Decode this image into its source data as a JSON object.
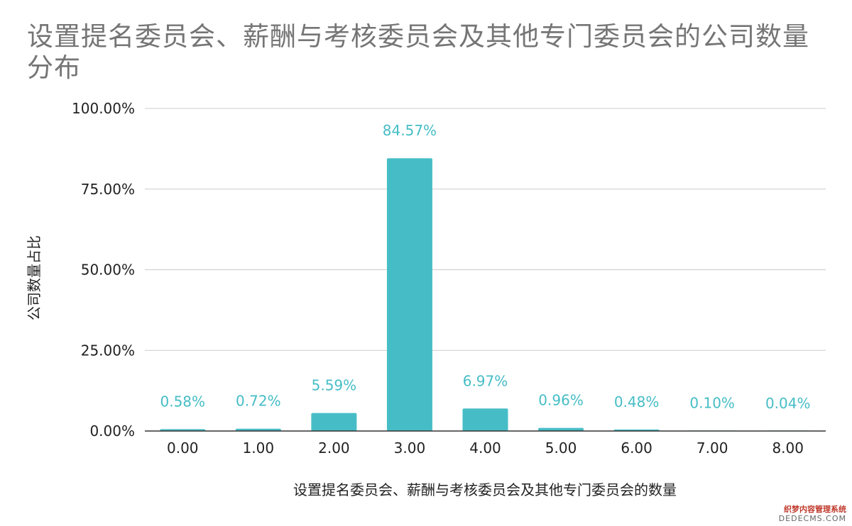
{
  "chart_data": {
    "type": "bar",
    "title": "设置提名委员会、薪酬与考核委员会及其他专门委员会的公司数量分布",
    "xlabel": "设置提名委员会、薪酬与考核委员会及其他专门委员会的数量",
    "ylabel": "公司数量占比",
    "categories": [
      "0.00",
      "1.00",
      "2.00",
      "3.00",
      "4.00",
      "5.00",
      "6.00",
      "7.00",
      "8.00"
    ],
    "values": [
      0.58,
      0.72,
      5.59,
      84.57,
      6.97,
      0.96,
      0.48,
      0.1,
      0.04
    ],
    "value_labels": [
      "0.58%",
      "0.72%",
      "5.59%",
      "84.57%",
      "6.97%",
      "0.96%",
      "0.48%",
      "0.10%",
      "0.04%"
    ],
    "ylim": [
      0,
      100
    ],
    "y_ticks": [
      0,
      25,
      50,
      75,
      100
    ],
    "y_tick_labels": [
      "0.00%",
      "25.00%",
      "50.00%",
      "75.00%",
      "100.00%"
    ],
    "grid": true,
    "legend": "none",
    "colors": {
      "bar": "#46bdc6",
      "label": "#46bdc6",
      "grid": "#cccccc",
      "axis": "#333333",
      "title": "#757575"
    }
  },
  "watermark": {
    "line1": "织梦内容管理系统",
    "line2": "DEDECMS.COM"
  }
}
